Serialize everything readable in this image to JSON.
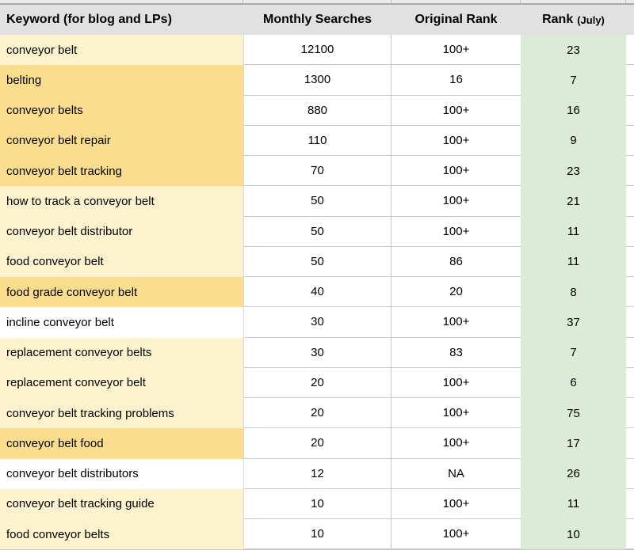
{
  "header": {
    "keyword": "Keyword (for blog and LPs)",
    "monthly_searches": "Monthly Searches",
    "original_rank": "Original Rank",
    "rank_main": "Rank",
    "rank_sub": "(July)"
  },
  "colors": {
    "header_bg": "#e2e1e1",
    "top_strip_bg": "#ebebeb",
    "frozen_divider": "#a9a7a7",
    "light_yellow": "#fcf3ce",
    "dark_yellow": "#fbde8d",
    "green": "#ddebd6",
    "gridline": "#c9c9c9"
  },
  "rows": [
    {
      "keyword": "conveyor belt",
      "monthly": "12100",
      "original": "100+",
      "july": "23",
      "shade": "light"
    },
    {
      "keyword": "belting",
      "monthly": "1300",
      "original": "16",
      "july": "7",
      "shade": "dark"
    },
    {
      "keyword": "conveyor belts",
      "monthly": "880",
      "original": "100+",
      "july": "16",
      "shade": "dark"
    },
    {
      "keyword": "conveyor belt repair",
      "monthly": "110",
      "original": "100+",
      "july": "9",
      "shade": "dark"
    },
    {
      "keyword": "conveyor belt tracking",
      "monthly": "70",
      "original": "100+",
      "july": "23",
      "shade": "dark"
    },
    {
      "keyword": "how to track a conveyor belt",
      "monthly": "50",
      "original": "100+",
      "july": "21",
      "shade": "light"
    },
    {
      "keyword": "conveyor belt distributor",
      "monthly": "50",
      "original": "100+",
      "july": "11",
      "shade": "light"
    },
    {
      "keyword": "food conveyor belt",
      "monthly": "50",
      "original": "86",
      "july": "11",
      "shade": "light"
    },
    {
      "keyword": "food grade conveyor belt",
      "monthly": "40",
      "original": "20",
      "july": "8",
      "shade": "dark"
    },
    {
      "keyword": "incline conveyor belt",
      "monthly": "30",
      "original": "100+",
      "july": "37",
      "shade": "white"
    },
    {
      "keyword": "replacement conveyor belts",
      "monthly": "30",
      "original": "83",
      "july": "7",
      "shade": "light"
    },
    {
      "keyword": "replacement conveyor belt",
      "monthly": "20",
      "original": "100+",
      "july": "6",
      "shade": "light"
    },
    {
      "keyword": "conveyor belt tracking problems",
      "monthly": "20",
      "original": "100+",
      "july": "75",
      "shade": "light"
    },
    {
      "keyword": "conveyor belt food",
      "monthly": "20",
      "original": "100+",
      "july": "17",
      "shade": "dark"
    },
    {
      "keyword": "conveyor belt distributors",
      "monthly": "12",
      "original": "NA",
      "july": "26",
      "shade": "white"
    },
    {
      "keyword": "conveyor belt tracking guide",
      "monthly": "10",
      "original": "100+",
      "july": "11",
      "shade": "light"
    },
    {
      "keyword": "food conveyor belts",
      "monthly": "10",
      "original": "100+",
      "july": "10",
      "shade": "light"
    }
  ]
}
